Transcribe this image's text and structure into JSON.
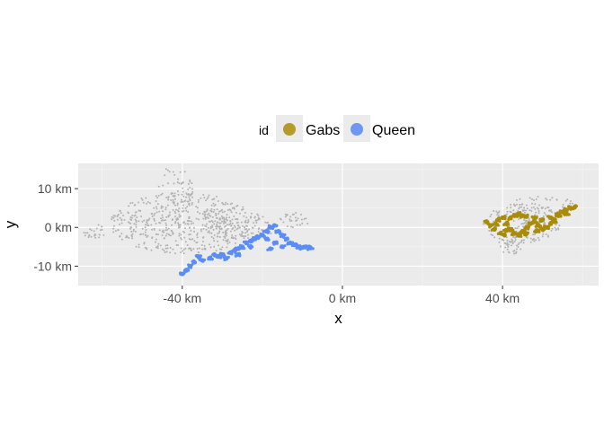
{
  "chart_data": {
    "type": "scatter",
    "xlabel": "x",
    "ylabel": "y",
    "xunit": "km",
    "yunit": "km",
    "xlim": [
      -66,
      64
    ],
    "ylim": [
      -15,
      16.5
    ],
    "xticks": [
      -40,
      0,
      40
    ],
    "xtick_labels": [
      "-40 km",
      "0 km",
      "40 km"
    ],
    "yticks": [
      -10,
      0,
      10
    ],
    "ytick_labels": [
      "-10 km",
      "0 km",
      "10 km"
    ],
    "grid": true,
    "legend_position": "top",
    "legend": {
      "title": "id",
      "entries": [
        {
          "name": "Gabs",
          "color": "#b69b2b"
        },
        {
          "name": "Queen",
          "color": "#6f97f0"
        }
      ]
    },
    "background_points_color": "#b3b3b3",
    "series": [
      {
        "name": "Gabs",
        "color": "#a88c0a",
        "points": [
          [
            36,
            1.5
          ],
          [
            37,
            0.5
          ],
          [
            38,
            -0.5
          ],
          [
            38.5,
            0.8
          ],
          [
            39,
            2
          ],
          [
            40,
            2.5
          ],
          [
            41,
            1
          ],
          [
            42,
            -0.5
          ],
          [
            43,
            -1.5
          ],
          [
            44,
            -2
          ],
          [
            45,
            -1
          ],
          [
            46,
            0
          ],
          [
            47,
            1
          ],
          [
            48,
            1.5
          ],
          [
            49,
            0.5
          ],
          [
            50,
            -0.5
          ],
          [
            51,
            0
          ],
          [
            52,
            1
          ],
          [
            53,
            2
          ],
          [
            54,
            3
          ],
          [
            55,
            4
          ],
          [
            56,
            4.5
          ],
          [
            57,
            5
          ],
          [
            58,
            5.2
          ],
          [
            45,
            3
          ],
          [
            44,
            3.5
          ],
          [
            43,
            3
          ],
          [
            42,
            2.5
          ],
          [
            46,
            2.8
          ],
          [
            48,
            2.5
          ],
          [
            50,
            2
          ],
          [
            52,
            2.5
          ],
          [
            54,
            3.5
          ],
          [
            41,
            -0.8
          ],
          [
            39.5,
            -1.5
          ],
          [
            40.5,
            -2
          ],
          [
            46,
            -1.6
          ],
          [
            48.5,
            -0.8
          ],
          [
            53,
            1.5
          ],
          [
            56,
            3.5
          ]
        ]
      },
      {
        "name": "Queen",
        "color": "#5b8df5",
        "points": [
          [
            -40,
            -12
          ],
          [
            -39,
            -11
          ],
          [
            -38,
            -10
          ],
          [
            -37,
            -9
          ],
          [
            -35,
            -8.5
          ],
          [
            -33,
            -8
          ],
          [
            -31,
            -7.5
          ],
          [
            -30,
            -7
          ],
          [
            -28,
            -6.5
          ],
          [
            -27,
            -6
          ],
          [
            -26,
            -5.5
          ],
          [
            -25,
            -5
          ],
          [
            -24,
            -4
          ],
          [
            -23,
            -3.5
          ],
          [
            -22,
            -3
          ],
          [
            -21,
            -2.5
          ],
          [
            -20,
            -2
          ],
          [
            -19,
            -1
          ],
          [
            -18,
            0
          ],
          [
            -17,
            0.5
          ],
          [
            -16,
            -1
          ],
          [
            -15,
            -2
          ],
          [
            -14,
            -3
          ],
          [
            -13,
            -4
          ],
          [
            -12,
            -4.5
          ],
          [
            -11,
            -5
          ],
          [
            -10,
            -5.2
          ],
          [
            -9,
            -5
          ],
          [
            -8,
            -5.3
          ],
          [
            -19,
            -3
          ],
          [
            -17,
            -4
          ],
          [
            -15,
            -5
          ],
          [
            -29,
            -8
          ],
          [
            -32,
            -7
          ],
          [
            -26,
            -7
          ],
          [
            -36,
            -7.5
          ],
          [
            -23,
            -5
          ],
          [
            -18,
            -5.5
          ]
        ]
      }
    ]
  }
}
